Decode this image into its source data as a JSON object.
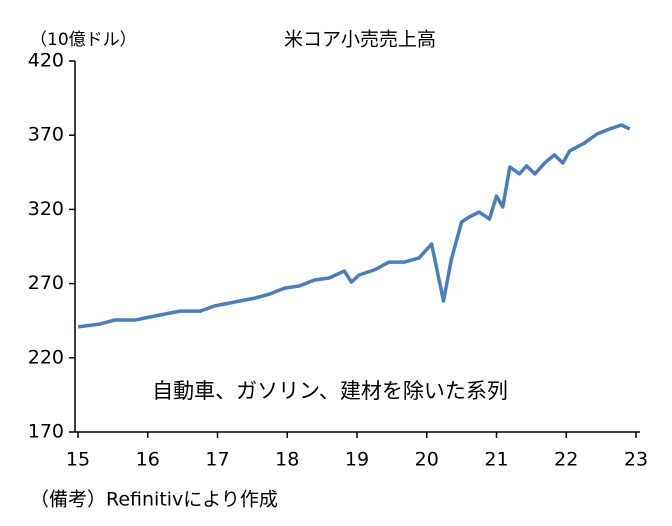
{
  "chart_data": {
    "type": "line",
    "title": "米コア小売売上高",
    "y_label": "（10億ドル）",
    "annotation": "自動車、ガソリン、建材を除いた系列",
    "note": "（備考）Refinitivにより作成",
    "color": "#4a7ebb",
    "x": [
      15.0,
      15.31,
      15.53,
      15.82,
      16.03,
      16.25,
      16.46,
      16.75,
      16.96,
      17.25,
      17.54,
      17.75,
      17.96,
      18.17,
      18.39,
      18.6,
      18.82,
      18.92,
      19.03,
      19.25,
      19.46,
      19.68,
      19.89,
      20.07,
      20.24,
      20.35,
      20.5,
      20.61,
      20.75,
      20.9,
      21.0,
      21.09,
      21.19,
      21.33,
      21.43,
      21.55,
      21.69,
      21.83,
      21.95,
      22.05,
      22.26,
      22.44,
      22.62,
      22.79,
      22.91
    ],
    "values": [
      240.8,
      242.7,
      245.5,
      245.5,
      247.5,
      249.5,
      251.5,
      251.5,
      255.0,
      257.6,
      260.3,
      263.0,
      267.0,
      268.4,
      272.4,
      273.8,
      278.5,
      271.0,
      275.8,
      279.2,
      284.5,
      284.5,
      287.3,
      296.7,
      258.3,
      285.9,
      311.5,
      314.9,
      318.2,
      313.5,
      329.0,
      321.6,
      348.6,
      343.9,
      349.3,
      343.9,
      351.3,
      356.7,
      351.3,
      359.4,
      364.7,
      370.8,
      374.2,
      376.9,
      374.2
    ],
    "xlim": [
      15,
      23
    ],
    "xticks": [
      15,
      16,
      17,
      18,
      19,
      20,
      21,
      22,
      23
    ],
    "ylim": [
      170,
      420
    ],
    "yticks": [
      170,
      220,
      270,
      320,
      370,
      420
    ]
  }
}
